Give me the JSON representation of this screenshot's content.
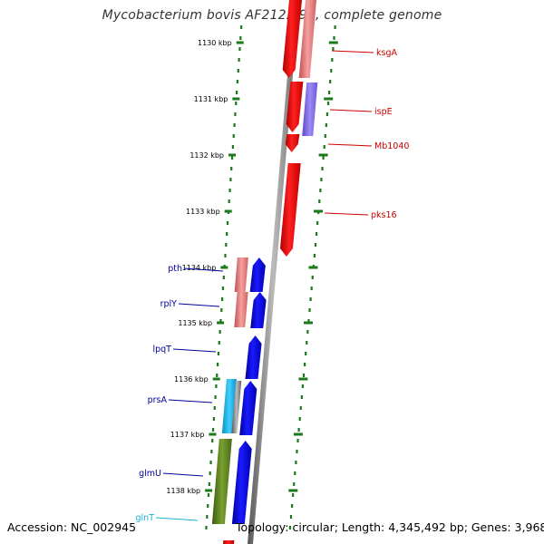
{
  "title": "Mycobacterium bovis AF2122/97, complete genome",
  "footer": {
    "accession": "Accession: NC_002945",
    "summary": "Topology: circular; Length: 4,345,492 bp; Genes: 3,968"
  },
  "colors": {
    "forward_gene": "#ff0000",
    "forward_gene_light": "#f08080",
    "forward_label": "#cc0000",
    "reverse_gene": "#0000ee",
    "reverse_gene_light": "#e06070",
    "reverse_label": "#000099",
    "purple_gene": "#7b68ee",
    "cyan_gene": "#1ec0f0",
    "cyan_label": "#1eb0e0",
    "green_gene": "#5a7d1e",
    "backbone": "#8a8a8a",
    "tick": "#1a7a1a"
  },
  "ticks": [
    {
      "label": "1130 kbp"
    },
    {
      "label": "1131 kbp"
    },
    {
      "label": "1132 kbp"
    },
    {
      "label": "1133 kbp"
    },
    {
      "label": "1134 kbp"
    },
    {
      "label": "1135 kbp"
    },
    {
      "label": "1136 kbp"
    },
    {
      "label": "1137 kbp"
    },
    {
      "label": "1138 kbp"
    }
  ],
  "forward_genes": [
    {
      "name": "ksgA",
      "color": "forward"
    },
    {
      "name": "ispE",
      "color": "purple"
    },
    {
      "name": "Mb1040",
      "color": "forward"
    },
    {
      "name": "pks16",
      "color": "forward"
    }
  ],
  "reverse_genes": [
    {
      "name": "pth",
      "color": "reverse"
    },
    {
      "name": "rplY",
      "color": "reverse"
    },
    {
      "name": "lpqT",
      "color": "reverse"
    },
    {
      "name": "prsA",
      "color": "reverse"
    },
    {
      "name": "glmU",
      "color": "reverse"
    },
    {
      "name": "glnT",
      "color": "cyan"
    }
  ]
}
